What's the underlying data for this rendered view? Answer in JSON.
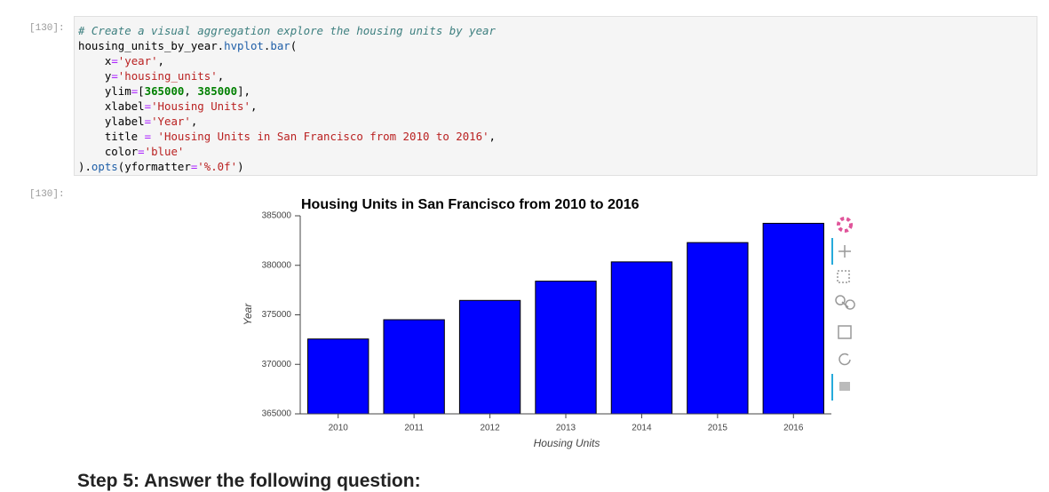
{
  "code_cell": {
    "prompt": "[130]:",
    "lines": [
      [
        {
          "text": "# Create a visual aggregation explore the housing units by year",
          "color": "#3d7f7f",
          "italic": true
        }
      ],
      [
        {
          "text": "housing_units_by_year."
        },
        {
          "text": "hvplot",
          "color": "#1f5fa8"
        },
        {
          "text": "."
        },
        {
          "text": "bar",
          "color": "#1f5fa8"
        },
        {
          "text": "("
        }
      ],
      [
        {
          "text": "    x"
        },
        {
          "text": "=",
          "color": "#aa22ff"
        },
        {
          "text": "'year'",
          "color": "#ba2121"
        },
        {
          "text": ","
        }
      ],
      [
        {
          "text": "    y"
        },
        {
          "text": "=",
          "color": "#aa22ff"
        },
        {
          "text": "'housing_units'",
          "color": "#ba2121"
        },
        {
          "text": ","
        }
      ],
      [
        {
          "text": "    ylim"
        },
        {
          "text": "=",
          "color": "#aa22ff"
        },
        {
          "text": "["
        },
        {
          "text": "365000",
          "color": "#008000",
          "bold": true
        },
        {
          "text": ", "
        },
        {
          "text": "385000",
          "color": "#008000",
          "bold": true
        },
        {
          "text": "],"
        }
      ],
      [
        {
          "text": "    xlabel"
        },
        {
          "text": "=",
          "color": "#aa22ff"
        },
        {
          "text": "'Housing Units'",
          "color": "#ba2121"
        },
        {
          "text": ","
        }
      ],
      [
        {
          "text": "    ylabel"
        },
        {
          "text": "=",
          "color": "#aa22ff"
        },
        {
          "text": "'Year'",
          "color": "#ba2121"
        },
        {
          "text": ","
        }
      ],
      [
        {
          "text": "    title "
        },
        {
          "text": "=",
          "color": "#aa22ff"
        },
        {
          "text": " "
        },
        {
          "text": "'Housing Units in San Francisco from 2010 to 2016'",
          "color": "#ba2121"
        },
        {
          "text": ","
        }
      ],
      [
        {
          "text": "    color"
        },
        {
          "text": "=",
          "color": "#aa22ff"
        },
        {
          "text": "'blue'",
          "color": "#ba2121"
        }
      ],
      [
        {
          "text": ")."
        },
        {
          "text": "opts",
          "color": "#1f5fa8"
        },
        {
          "text": "(yformatter"
        },
        {
          "text": "=",
          "color": "#aa22ff"
        },
        {
          "text": "'%.0f'",
          "color": "#ba2121"
        },
        {
          "text": ")"
        }
      ]
    ]
  },
  "output_prompt": "[130]:",
  "chart_data": {
    "type": "bar",
    "title": "Housing Units in San Francisco from 2010 to 2016",
    "x_label": "Housing Units",
    "y_label": "Year",
    "categories": [
      "2010",
      "2011",
      "2012",
      "2013",
      "2014",
      "2015",
      "2016"
    ],
    "values": [
      372560,
      374507,
      376454,
      378401,
      380348,
      382295,
      384242
    ],
    "color": "#0000ff",
    "ylim": [
      365000,
      385000
    ],
    "yticks": [
      365000,
      370000,
      375000,
      380000,
      385000
    ]
  },
  "heading": "Step 5: Answer the following question:"
}
